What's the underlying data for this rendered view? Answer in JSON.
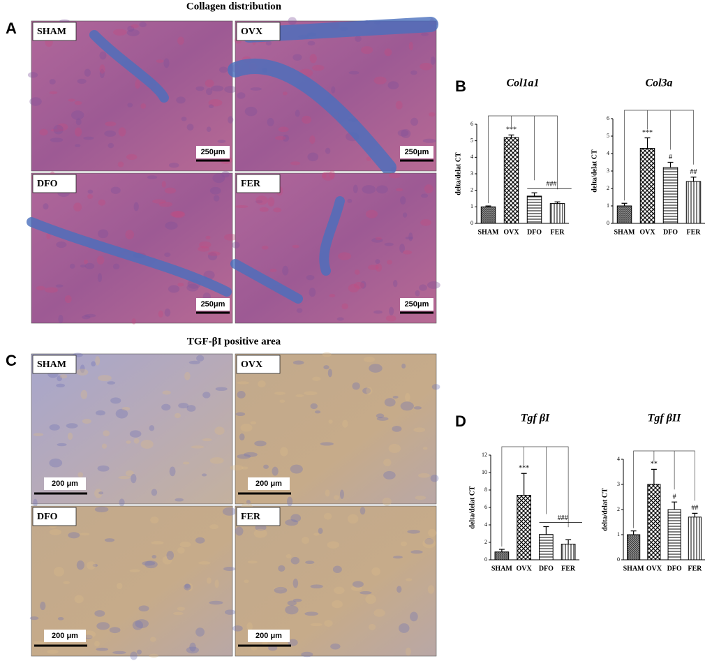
{
  "panels": [
    {
      "letter": "A",
      "title": "Collagen distribution",
      "scale_bar": "250μm",
      "images": [
        "SHAM",
        "OVX",
        "DFO",
        "FER"
      ]
    },
    {
      "letter": "C",
      "title": "TGF-βI positive area",
      "scale_bar": "200 μm",
      "images": [
        "SHAM",
        "OVX",
        "DFO",
        "FER"
      ]
    }
  ],
  "chart_letters": [
    "B",
    "D"
  ],
  "chart_data": [
    {
      "type": "bar",
      "title": "Col1a1",
      "y_label": "delta/delat CT",
      "categories": [
        "SHAM",
        "OVX",
        "DFO",
        "FER"
      ],
      "values": [
        1.0,
        5.2,
        1.65,
        1.2
      ],
      "errors": [
        0.05,
        0.15,
        0.2,
        0.1
      ],
      "ylim": [
        0,
        6
      ],
      "yticks": [
        0,
        1,
        2,
        3,
        4,
        5,
        6
      ],
      "annotations": [
        {
          "text": "***",
          "categories": [
            "OVX"
          ]
        },
        {
          "text": "###",
          "categories": [
            "DFO",
            "FER"
          ]
        }
      ]
    },
    {
      "type": "bar",
      "title": "Col3a",
      "y_label": "delta/delat CT",
      "categories": [
        "SHAM",
        "OVX",
        "DFO",
        "FER"
      ],
      "values": [
        1.0,
        4.3,
        3.2,
        2.4
      ],
      "errors": [
        0.15,
        0.6,
        0.3,
        0.25
      ],
      "ylim": [
        0,
        6
      ],
      "yticks": [
        0,
        1,
        2,
        3,
        4,
        5,
        6
      ],
      "annotations": [
        {
          "text": "***",
          "categories": [
            "OVX"
          ]
        },
        {
          "text": "#",
          "categories": [
            "DFO"
          ]
        },
        {
          "text": "##",
          "categories": [
            "FER"
          ]
        }
      ]
    },
    {
      "type": "bar",
      "title": "Tgf βI",
      "y_label": "delta/delat CT",
      "categories": [
        "SHAM",
        "OVX",
        "DFO",
        "FER"
      ],
      "values": [
        0.9,
        7.4,
        2.9,
        1.8
      ],
      "errors": [
        0.3,
        2.5,
        0.9,
        0.5
      ],
      "ylim": [
        0,
        12
      ],
      "yticks": [
        0,
        2,
        4,
        6,
        8,
        10,
        12
      ],
      "annotations": [
        {
          "text": "***",
          "categories": [
            "OVX"
          ]
        },
        {
          "text": "###",
          "categories": [
            "DFO",
            "FER"
          ]
        }
      ]
    },
    {
      "type": "bar",
      "title": "Tgf βII",
      "y_label": "delta/delat CT",
      "categories": [
        "SHAM",
        "OVX",
        "DFO",
        "FER"
      ],
      "values": [
        1.0,
        3.0,
        2.0,
        1.7
      ],
      "errors": [
        0.15,
        0.6,
        0.3,
        0.15
      ],
      "ylim": [
        0,
        4
      ],
      "yticks": [
        0,
        1,
        2,
        3,
        4
      ],
      "annotations": [
        {
          "text": "**",
          "categories": [
            "OVX"
          ]
        },
        {
          "text": "#",
          "categories": [
            "DFO"
          ]
        },
        {
          "text": "##",
          "categories": [
            "FER"
          ]
        }
      ]
    }
  ]
}
